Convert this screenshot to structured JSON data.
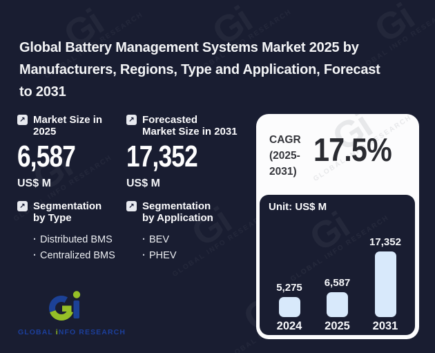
{
  "title": {
    "lines": [
      "Global Battery Management Systems Market 2025 by",
      "Manufacturers, Regions, Type and Application, Forecast",
      "to 2031"
    ]
  },
  "glyphs": {
    "arrow": "↗",
    "bullet": "·"
  },
  "stats": [
    {
      "label_lines": [
        "Market Size in",
        "2025"
      ],
      "value": "6,587",
      "unit": "US$ M"
    },
    {
      "label_lines": [
        "Forecasted",
        "Market Size in 2031"
      ],
      "value": "17,352",
      "unit": "US$ M"
    }
  ],
  "segments": [
    {
      "label_lines": [
        "Segmentation",
        "by Type"
      ],
      "items": [
        "Distributed BMS",
        "Centralized BMS"
      ]
    },
    {
      "label_lines": [
        "Segmentation",
        "by Application"
      ],
      "items": [
        "BEV",
        "PHEV"
      ]
    }
  ],
  "cagr": {
    "label": "CAGR",
    "period": "(2025-2031)",
    "value": "17.5%"
  },
  "chart_data": {
    "type": "bar",
    "title": "Unit: US$ M",
    "categories": [
      "2024",
      "2025",
      "2031"
    ],
    "values": [
      5275,
      6587,
      17352
    ],
    "value_labels": [
      "5,275",
      "6,587",
      "17,352"
    ],
    "ylabel": "US$ M",
    "ylim": [
      0,
      18000
    ],
    "grid": false,
    "legend": false,
    "bar_color": "#d8e9fb"
  },
  "brand": {
    "watermark_gi": "Gi",
    "watermark_text": "GLOBAL INFO RESEARCH",
    "logo_part1": "GLOBAL ",
    "logo_part_i": "i",
    "logo_part2": "NFO RESEARCH"
  },
  "colors": {
    "background": "#191d31",
    "panel": "#fcfcfd",
    "bar": "#d8e9fb",
    "text_light": "#f3f4f6",
    "text_dark": "#2a2b31",
    "logo_blue": "#1c4196",
    "logo_green": "#95bf27"
  }
}
